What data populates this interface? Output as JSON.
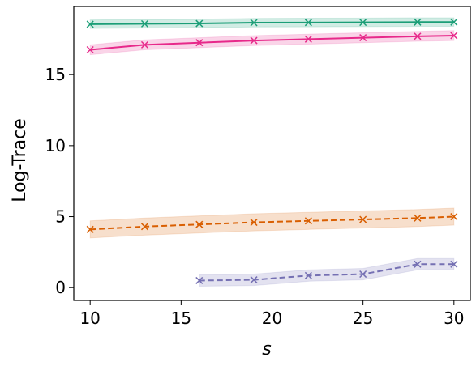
{
  "chart_data": {
    "type": "line",
    "xlabel": "s",
    "ylabel": "Log-Trace",
    "xlim": [
      9.1,
      30.9
    ],
    "ylim": [
      -0.9,
      19.8
    ],
    "xticks": [
      10,
      15,
      20,
      25,
      30
    ],
    "yticks": [
      0,
      5,
      10,
      15
    ],
    "grid": false,
    "legend": false,
    "series": [
      {
        "color": "#1b9e77",
        "linestyle": "solid",
        "marker": "x",
        "x": [
          10,
          13,
          16,
          19,
          22,
          25,
          28,
          30
        ],
        "y": [
          18.55,
          18.58,
          18.6,
          18.66,
          18.67,
          18.68,
          18.7,
          18.7
        ],
        "band": 0.3
      },
      {
        "color": "#e7298a",
        "linestyle": "solid",
        "marker": "x",
        "x": [
          10,
          13,
          16,
          19,
          22,
          25,
          28,
          30
        ],
        "y": [
          16.75,
          17.1,
          17.25,
          17.4,
          17.5,
          17.6,
          17.7,
          17.75
        ],
        "band": 0.35
      },
      {
        "color": "#d95f02",
        "linestyle": "dashed",
        "marker": "x",
        "x": [
          10,
          13,
          16,
          19,
          22,
          25,
          28,
          30
        ],
        "y": [
          4.1,
          4.3,
          4.45,
          4.6,
          4.7,
          4.8,
          4.9,
          5.0
        ],
        "band": 0.6
      },
      {
        "color": "#7570b3",
        "linestyle": "dashed",
        "marker": "x",
        "x": [
          16,
          19,
          22,
          25,
          28,
          30
        ],
        "y": [
          0.5,
          0.55,
          0.85,
          0.95,
          1.65,
          1.65
        ],
        "band": 0.4
      }
    ]
  }
}
